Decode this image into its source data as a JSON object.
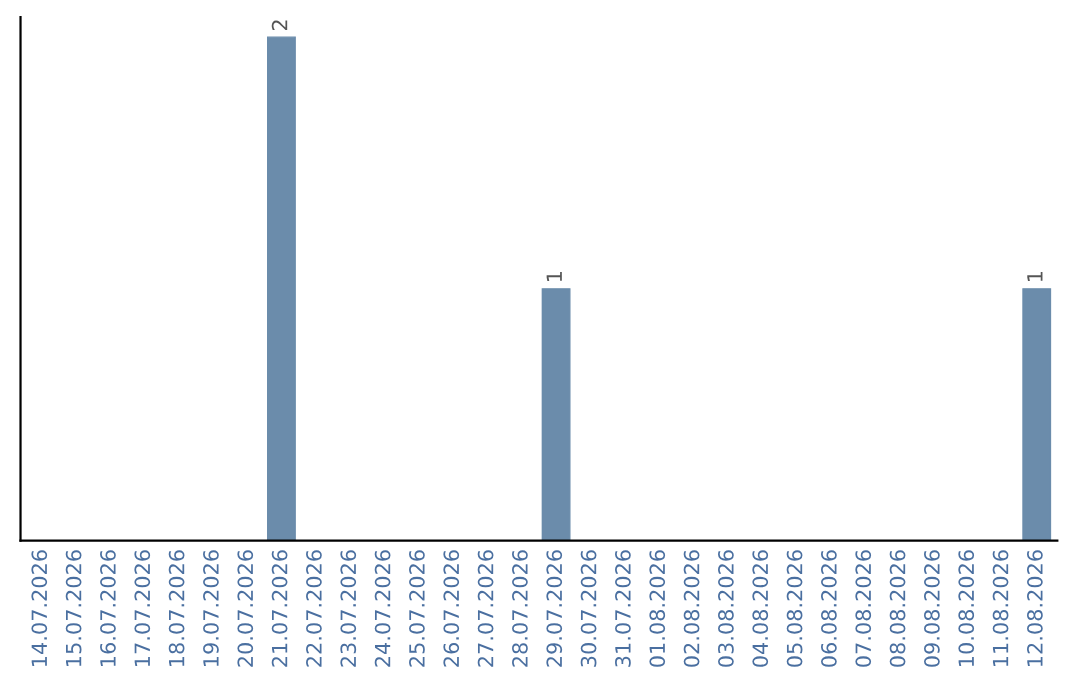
{
  "chart_data": {
    "type": "bar",
    "categories": [
      "14.07.2026",
      "15.07.2026",
      "16.07.2026",
      "17.07.2026",
      "18.07.2026",
      "19.07.2026",
      "20.07.2026",
      "21.07.2026",
      "22.07.2026",
      "23.07.2026",
      "24.07.2026",
      "25.07.2026",
      "26.07.2026",
      "27.07.2026",
      "28.07.2026",
      "29.07.2026",
      "30.07.2026",
      "31.07.2026",
      "01.08.2026",
      "02.08.2026",
      "03.08.2026",
      "04.08.2026",
      "05.08.2026",
      "06.08.2026",
      "07.08.2026",
      "08.08.2026",
      "09.08.2026",
      "10.08.2026",
      "11.08.2026",
      "12.08.2026"
    ],
    "values": [
      0,
      0,
      0,
      0,
      0,
      0,
      0,
      2,
      0,
      0,
      0,
      0,
      0,
      0,
      0,
      1,
      0,
      0,
      0,
      0,
      0,
      0,
      0,
      0,
      0,
      0,
      0,
      0,
      0,
      1
    ],
    "value_labels": [
      null,
      null,
      null,
      null,
      null,
      null,
      null,
      "2",
      null,
      null,
      null,
      null,
      null,
      null,
      null,
      "1",
      null,
      null,
      null,
      null,
      null,
      null,
      null,
      null,
      null,
      null,
      null,
      null,
      null,
      "1"
    ],
    "color": "#6b8cab",
    "grid": false,
    "legend": false
  }
}
